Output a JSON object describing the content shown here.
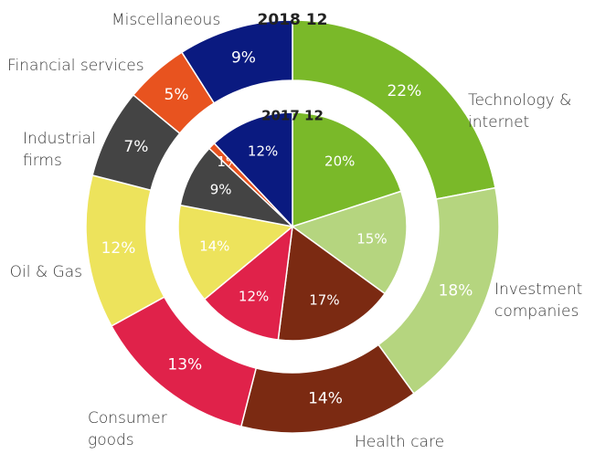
{
  "chart_data": {
    "type": "donut",
    "categories": [
      "Technology & internet",
      "Investment companies",
      "Health care",
      "Consumer goods",
      "Oil & Gas",
      "Industrial firms",
      "Financial services",
      "Miscellaneous"
    ],
    "colors": [
      "#7ab929",
      "#b5d57f",
      "#7b2a12",
      "#e0224a",
      "#ede35c",
      "#444444",
      "#e8531f",
      "#0a1a80"
    ],
    "series": [
      {
        "name": "2018 12",
        "values": [
          22,
          18,
          14,
          13,
          12,
          7,
          5,
          9
        ],
        "value_labels": [
          "22%",
          "18%",
          "14%",
          "13%",
          "12%",
          "7%",
          "5%",
          "9%"
        ]
      },
      {
        "name": "2017 12",
        "values": [
          20,
          15,
          17,
          12,
          14,
          9,
          1,
          12
        ],
        "value_labels": [
          "20%",
          "15%",
          "17%",
          "12%",
          "14%",
          "9%",
          "1%",
          "12%"
        ]
      }
    ]
  }
}
